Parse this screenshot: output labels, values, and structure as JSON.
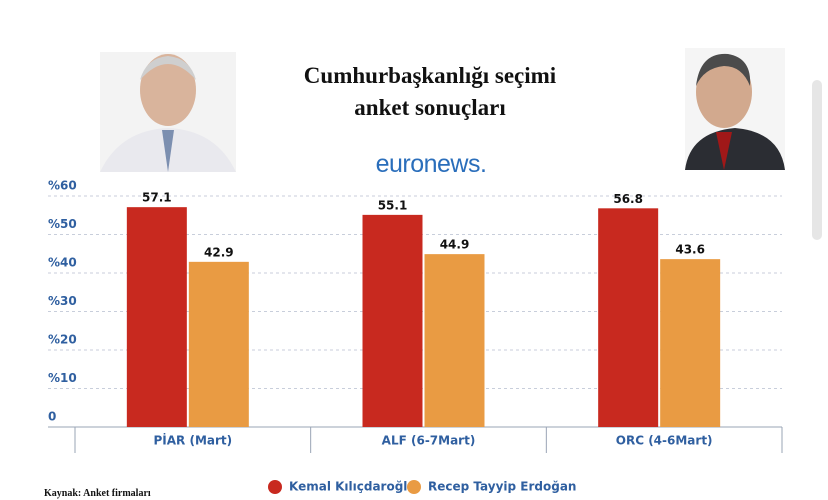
{
  "chart_data": {
    "type": "bar",
    "title": "Cumhurbaşkanlığı seçimi anket sonuçları",
    "logo": "euronews.",
    "source": "Kaynak: Anket firmaları",
    "categories": [
      "PİAR (Mart)",
      "ALF (6-7Mart)",
      "ORC (4-6Mart)"
    ],
    "series": [
      {
        "name": "Kemal Kılıçdaroğlu",
        "color": "#c8291f",
        "values": [
          57.1,
          55.1,
          56.8
        ]
      },
      {
        "name": "Recep Tayyip Erdoğan",
        "color": "#e99b43",
        "values": [
          42.9,
          44.9,
          43.6
        ]
      }
    ],
    "ylim": [
      0,
      60
    ],
    "yticks": [
      0,
      {
        "value": 10,
        "label": "%10"
      },
      {
        "value": 20,
        "label": "%20"
      },
      {
        "value": 30,
        "label": "%30"
      },
      {
        "value": 40,
        "label": "%40"
      },
      {
        "value": 50,
        "label": "%50"
      },
      {
        "value": 60,
        "label": "%60"
      }
    ],
    "grid": true
  }
}
